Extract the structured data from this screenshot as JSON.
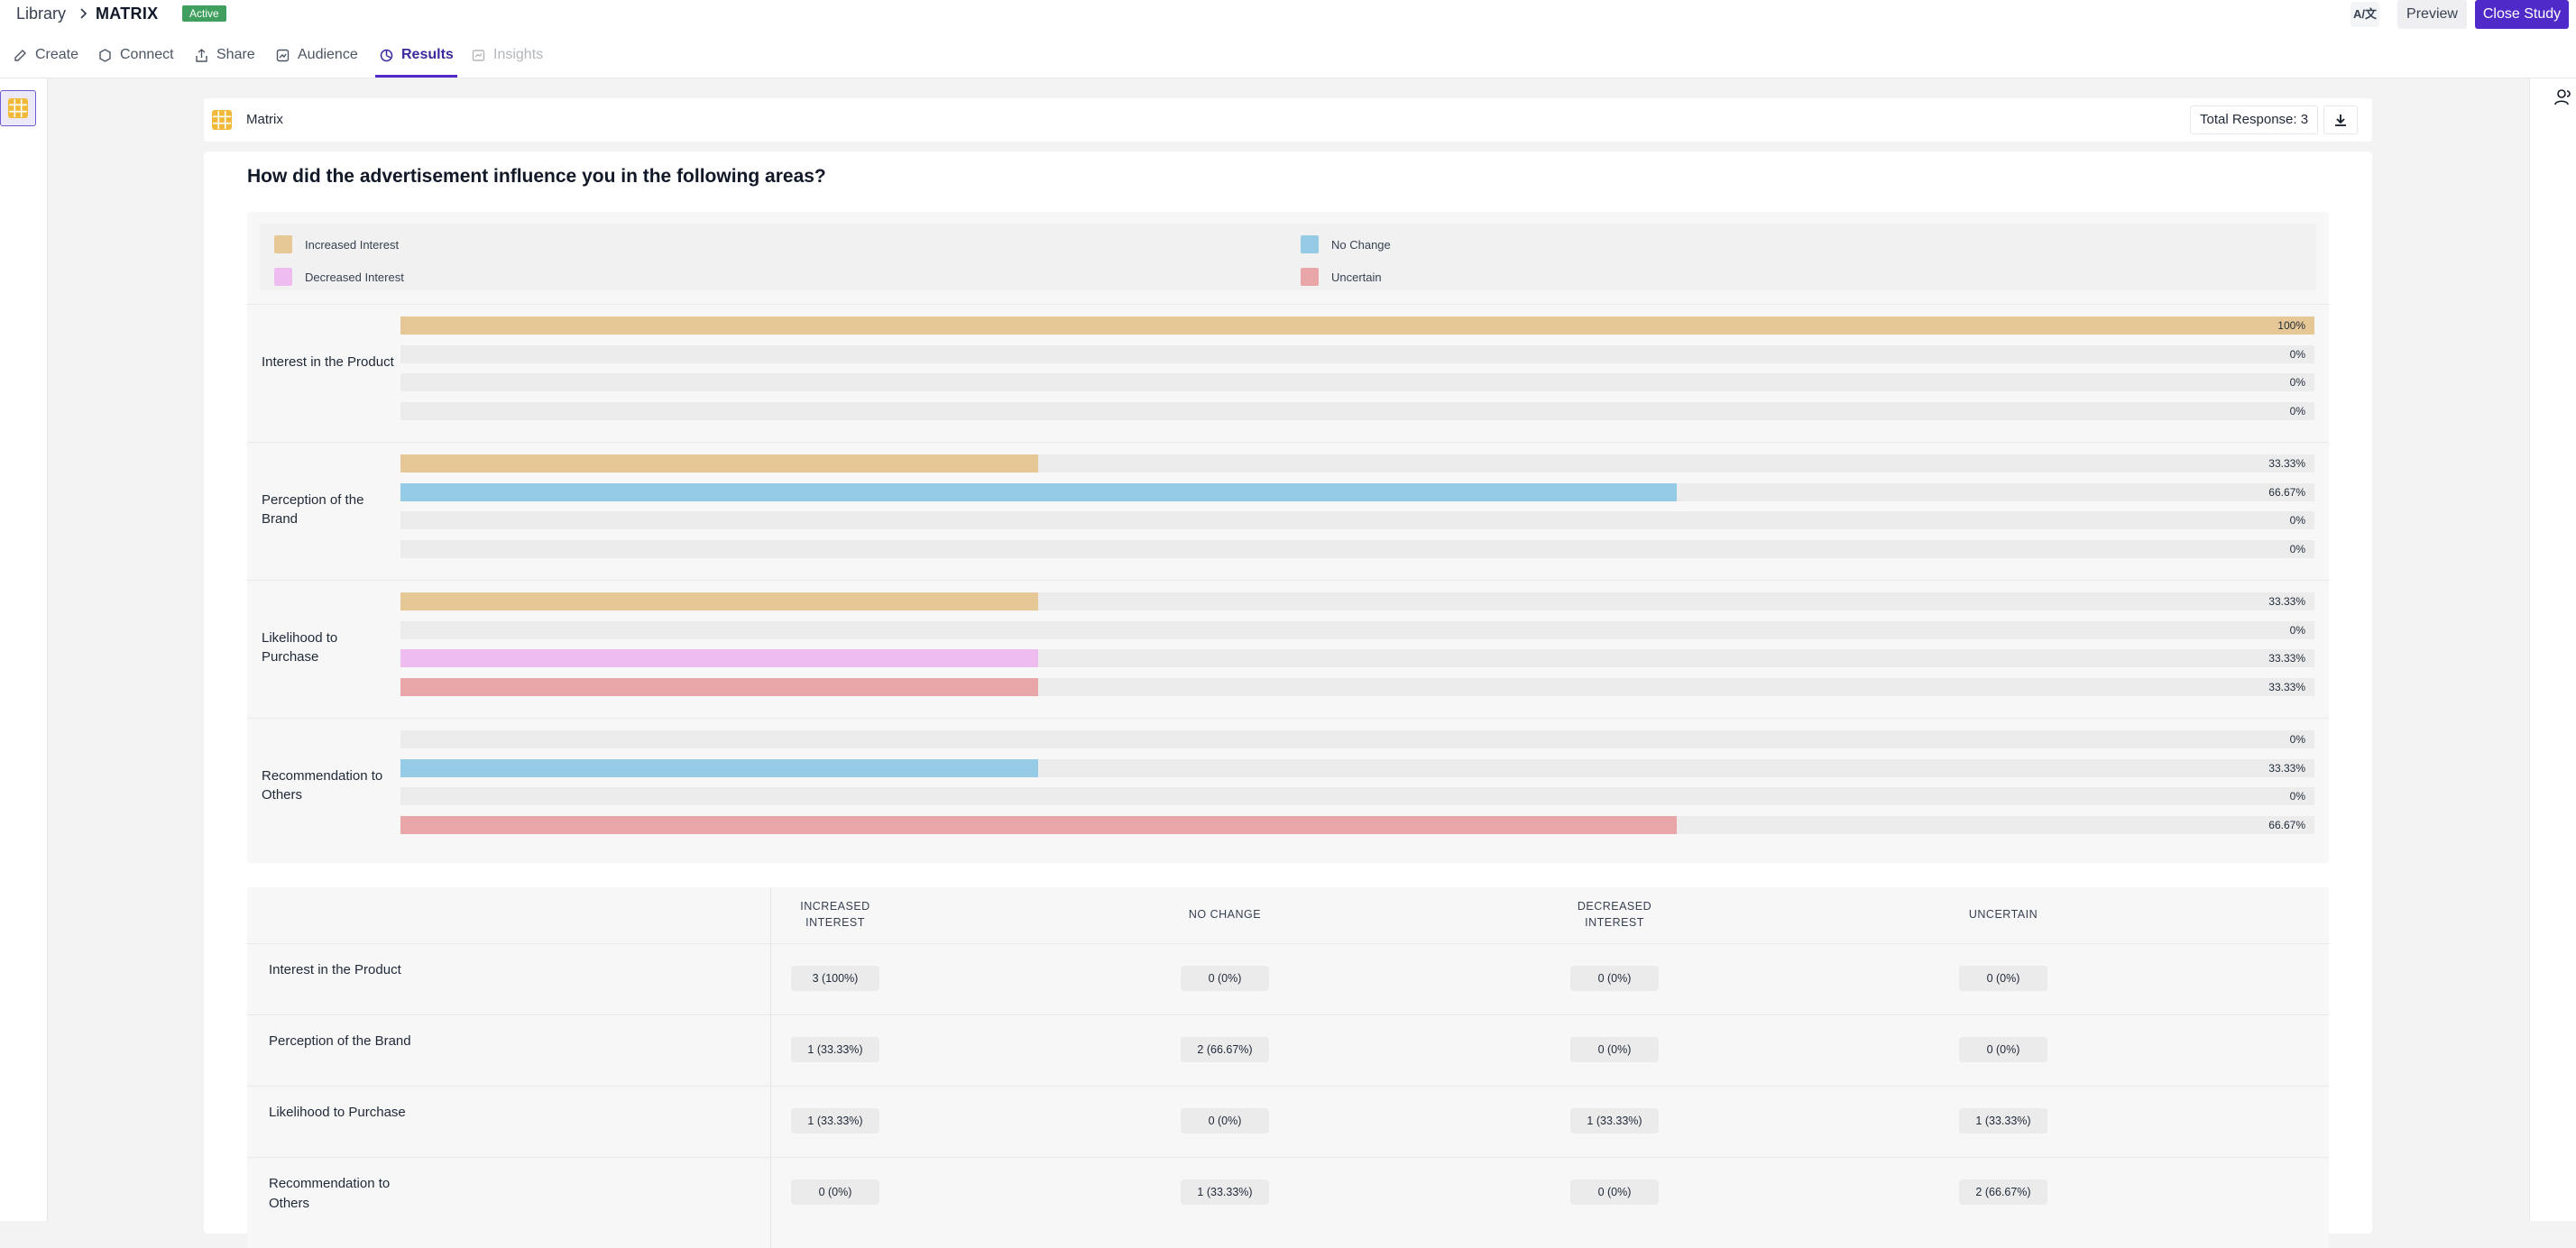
{
  "header": {
    "breadcrumb_root": "Library",
    "breadcrumb_current": "MATRIX",
    "status": "Active",
    "lang_button": "A/文",
    "preview_label": "Preview",
    "close_label": "Close Study"
  },
  "tabs": [
    {
      "label": "Create",
      "icon": "pencil-icon",
      "state": "normal"
    },
    {
      "label": "Connect",
      "icon": "hexagon-icon",
      "state": "normal"
    },
    {
      "label": "Share",
      "icon": "share-icon",
      "state": "normal"
    },
    {
      "label": "Audience",
      "icon": "audience-icon",
      "state": "normal"
    },
    {
      "label": "Results",
      "icon": "pie-chart-icon",
      "state": "active"
    },
    {
      "label": "Insights",
      "icon": "insights-icon",
      "state": "disabled"
    }
  ],
  "matrix_header": {
    "title": "Matrix",
    "total_response": "Total Response: 3"
  },
  "question": "How did the advertisement influence you in the following areas?",
  "colors": {
    "increased_interest": "#e6c897",
    "no_change": "#95cbe4",
    "decreased_interest": "#efbcef",
    "uncertain": "#e8a6a8",
    "accent": "#4f2ac8"
  },
  "chart_data": {
    "type": "bar",
    "orientation": "horizontal",
    "legend": [
      "Increased Interest",
      "No Change",
      "Decreased Interest",
      "Uncertain"
    ],
    "categories": [
      "Interest in the Product",
      "Perception of the Brand",
      "Likelihood to Purchase",
      "Recommendation to Others"
    ],
    "series": [
      {
        "name": "Increased Interest",
        "values": [
          100,
          33.33,
          33.33,
          0
        ],
        "labels": [
          "100%",
          "33.33%",
          "33.33%",
          "0%"
        ]
      },
      {
        "name": "No Change",
        "values": [
          0,
          66.67,
          0,
          33.33
        ],
        "labels": [
          "0%",
          "66.67%",
          "0%",
          "33.33%"
        ]
      },
      {
        "name": "Decreased Interest",
        "values": [
          0,
          0,
          33.33,
          0
        ],
        "labels": [
          "0%",
          "0%",
          "33.33%",
          "0%"
        ]
      },
      {
        "name": "Uncertain",
        "values": [
          0,
          0,
          33.33,
          66.67
        ],
        "labels": [
          "0%",
          "0%",
          "33.33%",
          "66.67%"
        ]
      }
    ],
    "xlim": [
      0,
      100
    ]
  },
  "table": {
    "columns": [
      "INCREASED INTEREST",
      "NO CHANGE",
      "DECREASED INTEREST",
      "UNCERTAIN"
    ],
    "rows": [
      {
        "label": "Interest in the Product",
        "cells": [
          "3 (100%)",
          "0 (0%)",
          "0 (0%)",
          "0 (0%)"
        ]
      },
      {
        "label": "Perception of the Brand",
        "cells": [
          "1 (33.33%)",
          "2 (66.67%)",
          "0 (0%)",
          "0 (0%)"
        ]
      },
      {
        "label": "Likelihood to Purchase",
        "cells": [
          "1 (33.33%)",
          "0 (0%)",
          "1 (33.33%)",
          "1 (33.33%)"
        ]
      },
      {
        "label": "Recommendation to Others",
        "cells": [
          "0 (0%)",
          "1 (33.33%)",
          "0 (0%)",
          "2 (66.67%)"
        ]
      }
    ]
  }
}
